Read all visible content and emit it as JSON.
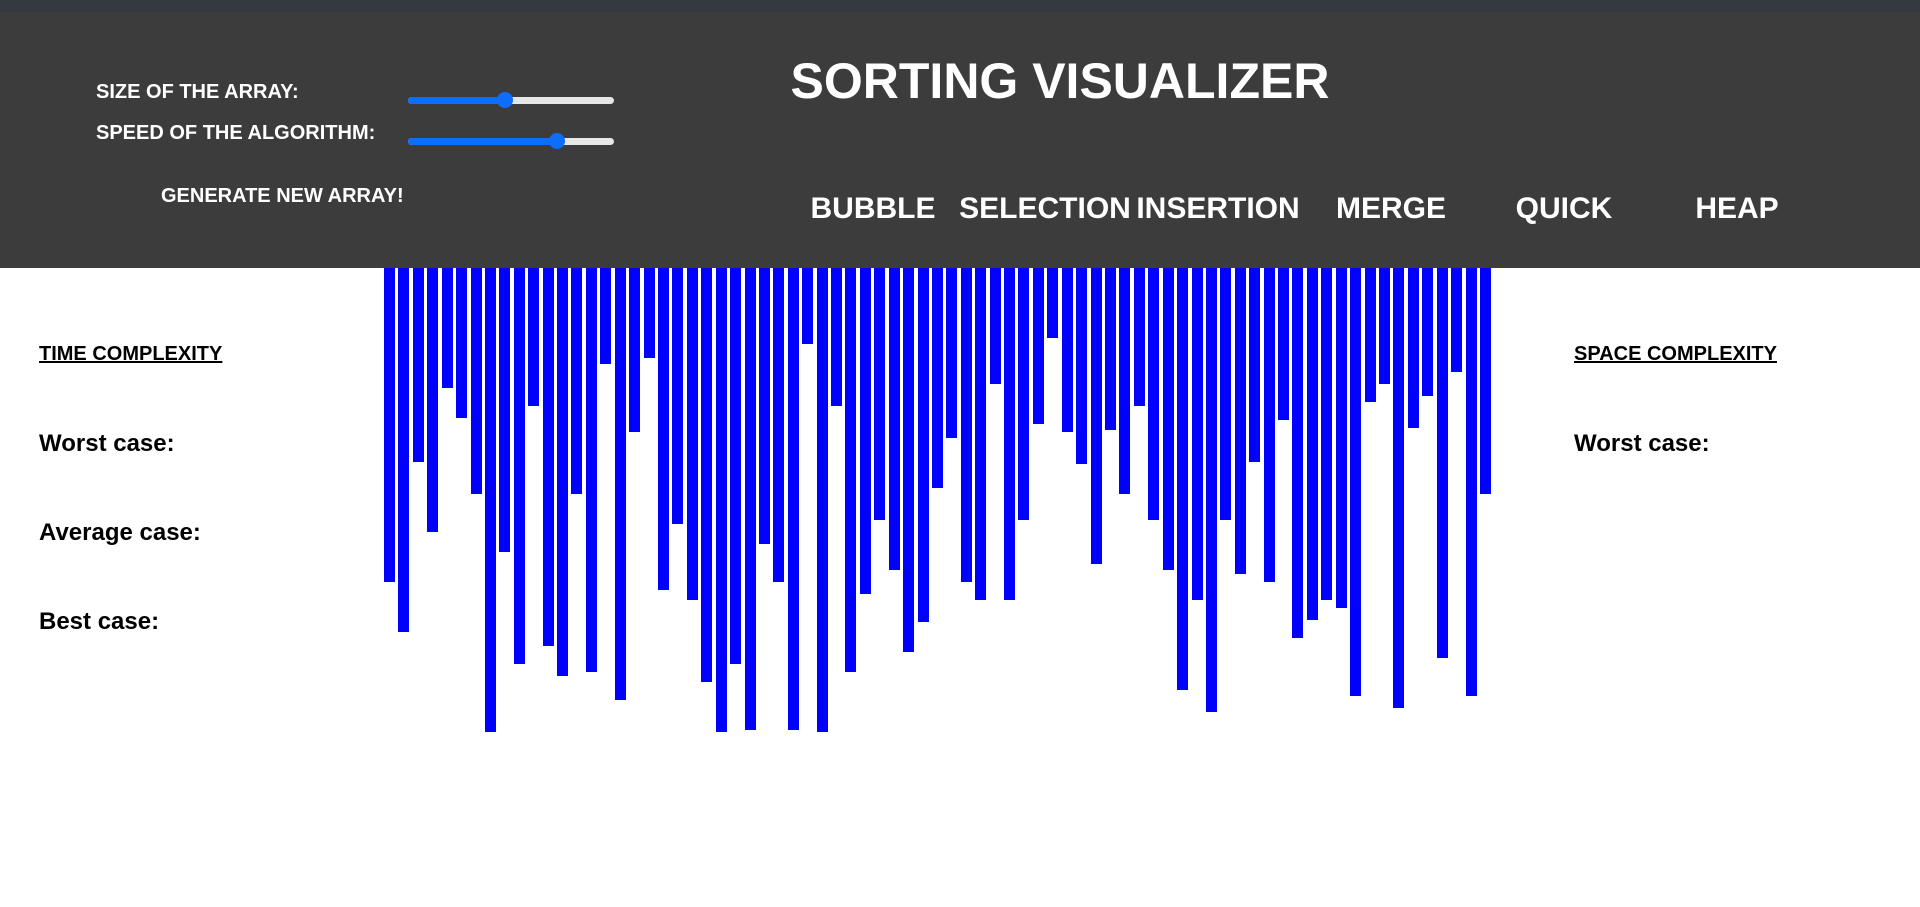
{
  "header": {
    "title": "SORTING VISUALIZER",
    "size_label": "SIZE OF THE ARRAY:",
    "speed_label": "SPEED OF THE ALGORITHM:",
    "size_slider_level": 0.47,
    "speed_slider_level": 0.74,
    "generate_label": "GENERATE NEW ARRAY!",
    "algorithms": [
      "BUBBLE",
      "SELECTION",
      "INSERTION",
      "MERGE",
      "QUICK",
      "HEAP"
    ]
  },
  "time_complexity": {
    "heading": "TIME COMPLEXITY",
    "worst": "Worst case:",
    "average": "Average case:",
    "best": "Best case:"
  },
  "space_complexity": {
    "heading": "SPACE COMPLEXITY",
    "worst": "Worst case:"
  },
  "colors": {
    "header_bg": "#3c3c3c",
    "bar": "#0000ff",
    "slider_accent": "#0d6efd"
  },
  "array": {
    "max_value": 470,
    "values": [
      314,
      364,
      194,
      264,
      120,
      150,
      226,
      464,
      284,
      396,
      138,
      378,
      408,
      226,
      404,
      96,
      432,
      164,
      90,
      322,
      256,
      332,
      414,
      464,
      396,
      462,
      276,
      314,
      462,
      76,
      464,
      138,
      404,
      326,
      252,
      302,
      384,
      354,
      220,
      170,
      314,
      332,
      116,
      332,
      252,
      156,
      70,
      164,
      196,
      296,
      162,
      226,
      138,
      252,
      302,
      422,
      332,
      444,
      252,
      306,
      194,
      314,
      152,
      370,
      352,
      332,
      340,
      428,
      134,
      116,
      440,
      160,
      128,
      390,
      104,
      428,
      226
    ]
  }
}
